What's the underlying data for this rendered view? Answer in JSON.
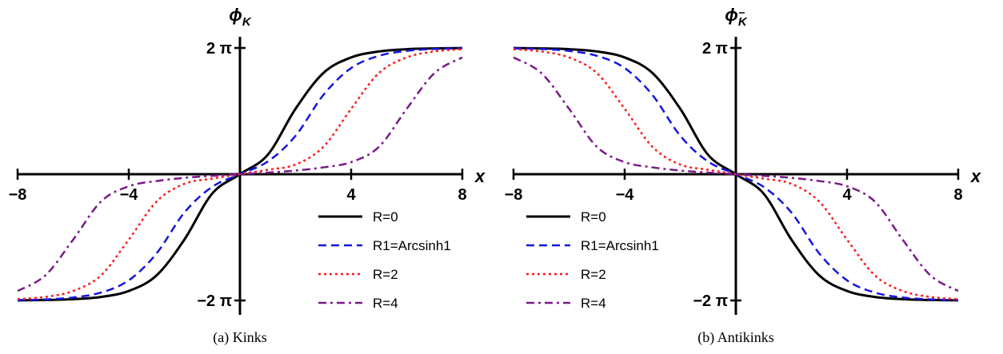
{
  "chart_data": [
    {
      "type": "line",
      "panel": "a",
      "caption": "(a) Kinks",
      "xlabel": "x",
      "ylabel": "ϕ",
      "ylabel_sub": "K",
      "xlim": [
        -8,
        8
      ],
      "ylim": [
        -6.2832,
        6.2832
      ],
      "x_ticks": [
        {
          "v": -8,
          "label": "−8"
        },
        {
          "v": -4,
          "label": "−4"
        },
        {
          "v": 4,
          "label": "4"
        },
        {
          "v": 8,
          "label": "8"
        }
      ],
      "y_ticks": [
        {
          "v": 6.2832,
          "label": "2 π"
        },
        {
          "v": -6.2832,
          "label": "−2 π"
        }
      ],
      "legend_position": "lower-right",
      "direction": 1,
      "series": [
        {
          "name": "R=0",
          "color": "#000000",
          "style": "solid",
          "x": [
            -8,
            -7,
            -6,
            -5,
            -4,
            -3,
            -2,
            -1,
            0,
            1,
            2,
            3,
            4,
            5,
            6,
            7,
            8
          ],
          "y": [
            -6.276,
            -6.26,
            -6.219,
            -6.108,
            -5.81,
            -5.035,
            -3.255,
            -0.967,
            0,
            0.967,
            3.255,
            5.035,
            5.81,
            6.108,
            6.219,
            6.26,
            6.276
          ]
        },
        {
          "name": "R1=Arcsinh1",
          "color": "#1515e0",
          "style": "dashed",
          "x": [
            -8,
            -7,
            -6,
            -5,
            -4,
            -3,
            -2,
            -1,
            0,
            1,
            2,
            3,
            4,
            5,
            6,
            7,
            8
          ],
          "y": [
            -6.263,
            -6.229,
            -6.135,
            -5.89,
            -5.282,
            -3.942,
            -1.909,
            -0.63,
            0,
            0.63,
            1.909,
            3.942,
            5.282,
            5.89,
            6.135,
            6.229,
            6.263
          ]
        },
        {
          "name": "R=2",
          "color": "#ff1a1a",
          "style": "dotted",
          "x": [
            -8,
            -7,
            -6,
            -5,
            -4,
            -3,
            -2,
            -1,
            0,
            1,
            2,
            3,
            4,
            5,
            6,
            7,
            8
          ],
          "y": [
            -6.219,
            -6.108,
            -5.81,
            -5.035,
            -3.255,
            -1.36,
            -0.48,
            -0.22,
            0,
            0.22,
            0.48,
            1.36,
            3.255,
            5.035,
            5.81,
            6.108,
            6.219
          ]
        },
        {
          "name": "R=4",
          "color": "#7a1a8a",
          "style": "dashdot",
          "x": [
            -8,
            -7,
            -6,
            -5,
            -4,
            -3,
            -2,
            -1,
            0,
            1,
            2,
            3,
            4,
            5,
            6,
            7,
            8
          ],
          "y": [
            -5.81,
            -5.035,
            -3.255,
            -1.36,
            -0.6,
            -0.34,
            -0.18,
            -0.08,
            0,
            0.08,
            0.18,
            0.34,
            0.6,
            1.36,
            3.255,
            5.035,
            5.81
          ]
        }
      ]
    },
    {
      "type": "line",
      "panel": "b",
      "caption": "(b) Antikinks",
      "xlabel": "x",
      "ylabel": "ϕ",
      "ylabel_sub": "K",
      "ylabel_sub_bar": true,
      "xlim": [
        -8,
        8
      ],
      "ylim": [
        -6.2832,
        6.2832
      ],
      "x_ticks": [
        {
          "v": -8,
          "label": "−8"
        },
        {
          "v": -4,
          "label": "−4"
        },
        {
          "v": 4,
          "label": "4"
        },
        {
          "v": 8,
          "label": "8"
        }
      ],
      "y_ticks": [
        {
          "v": 6.2832,
          "label": "2 π"
        },
        {
          "v": -6.2832,
          "label": "−2 π"
        }
      ],
      "legend_position": "lower-left",
      "direction": -1,
      "series": [
        {
          "name": "R=0",
          "color": "#000000",
          "style": "solid",
          "x": [
            -8,
            -7,
            -6,
            -5,
            -4,
            -3,
            -2,
            -1,
            0,
            1,
            2,
            3,
            4,
            5,
            6,
            7,
            8
          ],
          "y": [
            6.276,
            6.26,
            6.219,
            6.108,
            5.81,
            5.035,
            3.255,
            0.967,
            0,
            -0.967,
            -3.255,
            -5.035,
            -5.81,
            -6.108,
            -6.219,
            -6.26,
            -6.276
          ]
        },
        {
          "name": "R1=Arcsinh1",
          "color": "#1515e0",
          "style": "dashed",
          "x": [
            -8,
            -7,
            -6,
            -5,
            -4,
            -3,
            -2,
            -1,
            0,
            1,
            2,
            3,
            4,
            5,
            6,
            7,
            8
          ],
          "y": [
            6.263,
            6.229,
            6.135,
            5.89,
            5.282,
            3.942,
            1.909,
            0.63,
            0,
            -0.63,
            -1.909,
            -3.942,
            -5.282,
            -5.89,
            -6.135,
            -6.229,
            -6.263
          ]
        },
        {
          "name": "R=2",
          "color": "#ff1a1a",
          "style": "dotted",
          "x": [
            -8,
            -7,
            -6,
            -5,
            -4,
            -3,
            -2,
            -1,
            0,
            1,
            2,
            3,
            4,
            5,
            6,
            7,
            8
          ],
          "y": [
            6.219,
            6.108,
            5.81,
            5.035,
            3.255,
            1.36,
            0.48,
            0.22,
            0,
            -0.22,
            -0.48,
            -1.36,
            -3.255,
            -5.035,
            -5.81,
            -6.108,
            -6.219
          ]
        },
        {
          "name": "R=4",
          "color": "#7a1a8a",
          "style": "dashdot",
          "x": [
            -8,
            -7,
            -6,
            -5,
            -4,
            -3,
            -2,
            -1,
            0,
            1,
            2,
            3,
            4,
            5,
            6,
            7,
            8
          ],
          "y": [
            5.81,
            5.035,
            3.255,
            1.36,
            0.6,
            0.34,
            0.18,
            0.08,
            0,
            -0.08,
            -0.18,
            -0.34,
            -0.6,
            -1.36,
            -3.255,
            -5.035,
            -5.81
          ]
        }
      ]
    }
  ]
}
